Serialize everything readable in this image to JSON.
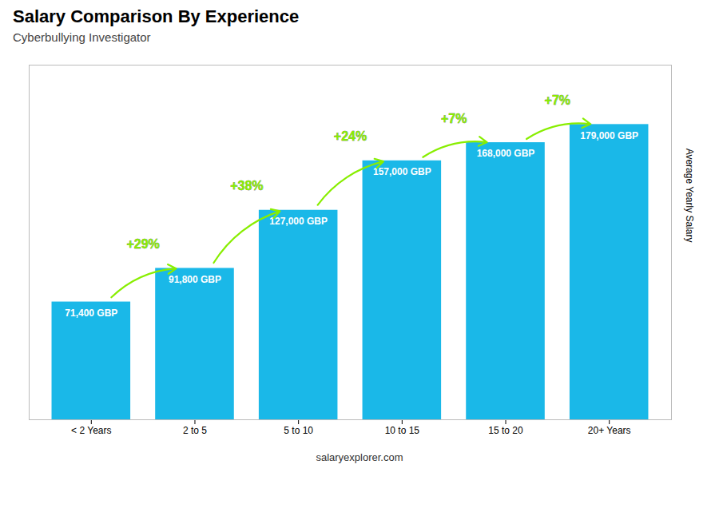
{
  "chart_data": {
    "type": "bar",
    "title": "Salary Comparison By Experience",
    "subtitle": "Cyberbullying Investigator",
    "ylabel": "Average Yearly Salary",
    "categories": [
      "< 2 Years",
      "2 to 5",
      "5 to 10",
      "10 to 15",
      "15 to 20",
      "20+ Years"
    ],
    "values": [
      71400,
      91800,
      127000,
      157000,
      168000,
      179000
    ],
    "value_labels": [
      "71,400 GBP",
      "91,800 GBP",
      "127,000 GBP",
      "157,000 GBP",
      "168,000 GBP",
      "179,000 GBP"
    ],
    "data_labels": true,
    "color": "#1ab8e8",
    "annotations": [
      {
        "text": "+29%",
        "color": "#88ee00"
      },
      {
        "text": "+38%",
        "color": "#88ee00"
      },
      {
        "text": "+24%",
        "color": "#88ee00"
      },
      {
        "text": "+7%",
        "color": "#88ee00"
      },
      {
        "text": "+7%",
        "color": "#88ee00"
      }
    ],
    "footer": "salaryexplorer.com",
    "ylim": [
      0,
      215000
    ],
    "tick_labels": "x"
  }
}
